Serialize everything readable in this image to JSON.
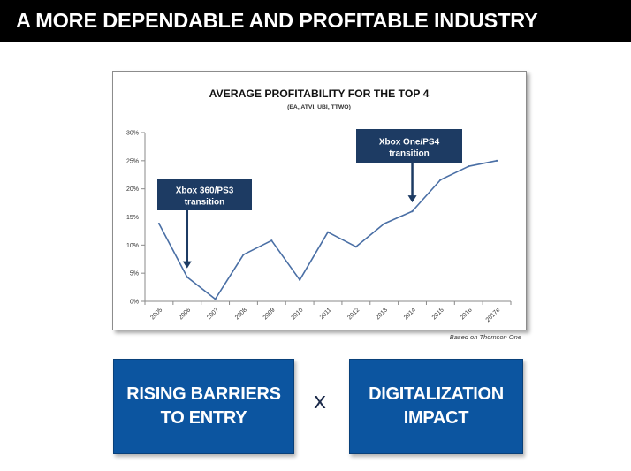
{
  "header": {
    "title": "A MORE DEPENDABLE AND PROFITABLE INDUSTRY"
  },
  "source_note": "Based on Thomson One",
  "boxes": {
    "left": {
      "line1": "RISING BARRIERS",
      "line2": "TO ENTRY"
    },
    "operator": "x",
    "right": {
      "line1": "DIGITALIZATION",
      "line2": "IMPACT"
    }
  },
  "colors": {
    "line": "#4a6fa5",
    "callout": "#1d3b63",
    "box": "#0c55a0"
  },
  "chart_data": {
    "type": "line",
    "title": "AVERAGE PROFITABILITY FOR THE TOP 4",
    "subtitle": "(EA, ATVI, UBI, TTWO)",
    "xlabel": "",
    "ylabel": "",
    "categories": [
      "2005",
      "2006",
      "2007",
      "2008",
      "2009",
      "2010",
      "2011",
      "2012",
      "2013",
      "2014",
      "2015",
      "2016",
      "2017e"
    ],
    "series": [
      {
        "name": "Average profitability",
        "values": [
          13.8,
          4.3,
          0.4,
          8.3,
          10.8,
          3.8,
          12.3,
          9.7,
          13.8,
          16.0,
          21.6,
          24.0,
          25.0
        ]
      }
    ],
    "ylim": [
      0,
      30
    ],
    "yticks": [
      0,
      5,
      10,
      15,
      20,
      25,
      30
    ],
    "ytick_labels": [
      "0%",
      "5%",
      "10%",
      "15%",
      "20%",
      "25%",
      "30%"
    ],
    "grid": false,
    "annotations": [
      {
        "line1": "Xbox 360/PS3",
        "line2": "transition",
        "target_category": "2006"
      },
      {
        "line1": "Xbox One/PS4",
        "line2": "transition",
        "target_category": "2014"
      }
    ]
  }
}
